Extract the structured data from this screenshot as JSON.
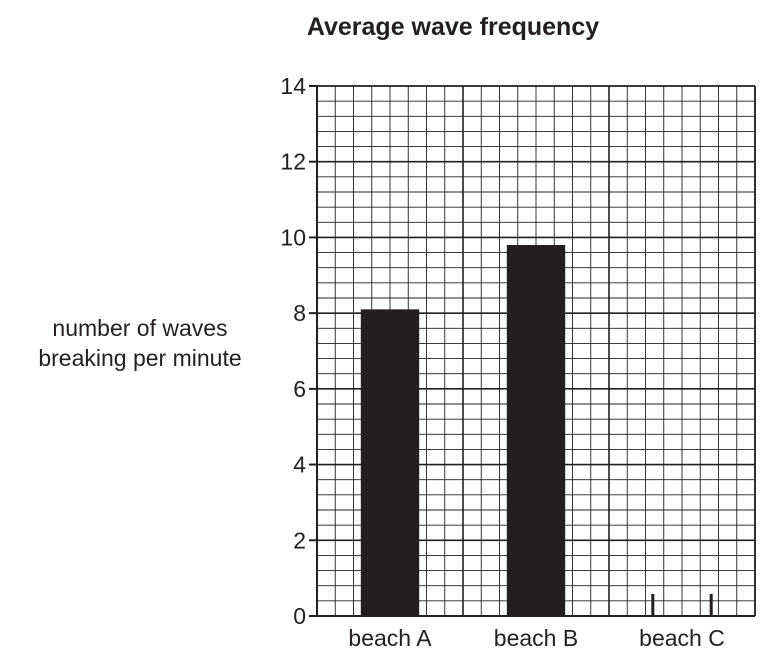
{
  "chart_data": {
    "type": "bar",
    "title": "Average wave frequency",
    "ylabel": [
      "number of waves",
      "breaking per minute"
    ],
    "xlabel": "",
    "categories": [
      "beach A",
      "beach B",
      "beach C"
    ],
    "values": [
      8.1,
      9.8,
      null
    ],
    "ylim": [
      0,
      14
    ],
    "yticks": [
      0,
      2,
      4,
      6,
      8,
      10,
      12,
      14
    ],
    "grid": true,
    "legend": "none",
    "colors": {
      "bar": "#231f20",
      "grid": "#231f20",
      "background": "#ffffff"
    },
    "bar_width_fraction": 0.4,
    "annotations": [
      {
        "category": "beach C",
        "type": "small-mark",
        "position": "left"
      },
      {
        "category": "beach C",
        "type": "small-mark",
        "position": "right"
      }
    ]
  }
}
